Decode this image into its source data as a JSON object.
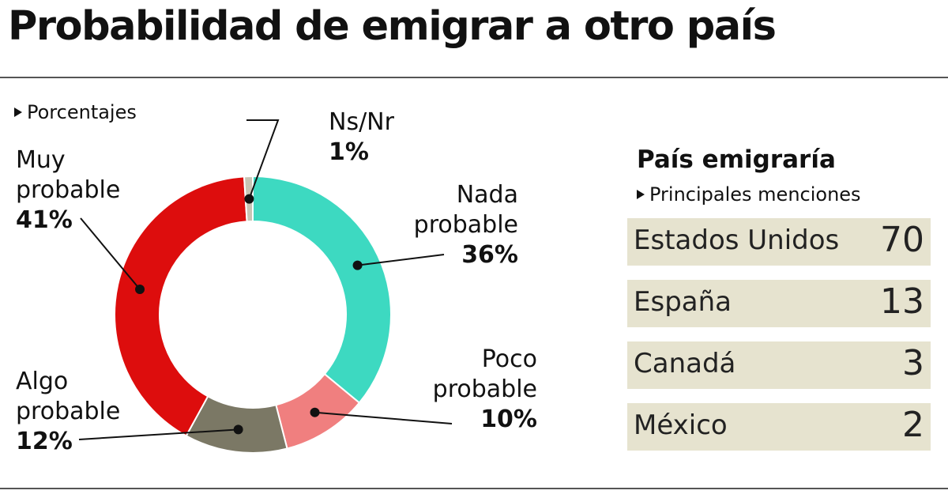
{
  "title": "Probabilidad de emigrar a otro país",
  "subtitle": "Porcentajes",
  "chart_data": {
    "type": "pie",
    "title": "Probabilidad de emigrar a otro país",
    "unit": "Porcentajes",
    "slices": [
      {
        "key": "nada",
        "name_lines": [
          "Nada",
          "probable"
        ],
        "pct_label": "36%",
        "value": 36,
        "color": "#3dd9c1"
      },
      {
        "key": "poco",
        "name_lines": [
          "Poco",
          "probable"
        ],
        "pct_label": "10%",
        "value": 10,
        "color": "#f07f7f"
      },
      {
        "key": "algo",
        "name_lines": [
          "Algo",
          "probable"
        ],
        "pct_label": "12%",
        "value": 12,
        "color": "#7b7865"
      },
      {
        "key": "muy",
        "name_lines": [
          "Muy",
          "probable"
        ],
        "pct_label": "41%",
        "value": 41,
        "color": "#dd0d0d"
      },
      {
        "key": "nsnr",
        "name_lines": [
          "Ns/Nr"
        ],
        "pct_label": "1%",
        "value": 1,
        "color": "#c8c4b4"
      }
    ]
  },
  "sidebar": {
    "title": "País emigraría",
    "subtitle": "Principales menciones",
    "rows": [
      {
        "country": "Estados Unidos",
        "count": "70"
      },
      {
        "country": "España",
        "count": "13"
      },
      {
        "country": "Canadá",
        "count": "3"
      },
      {
        "country": "México",
        "count": "2"
      }
    ]
  }
}
